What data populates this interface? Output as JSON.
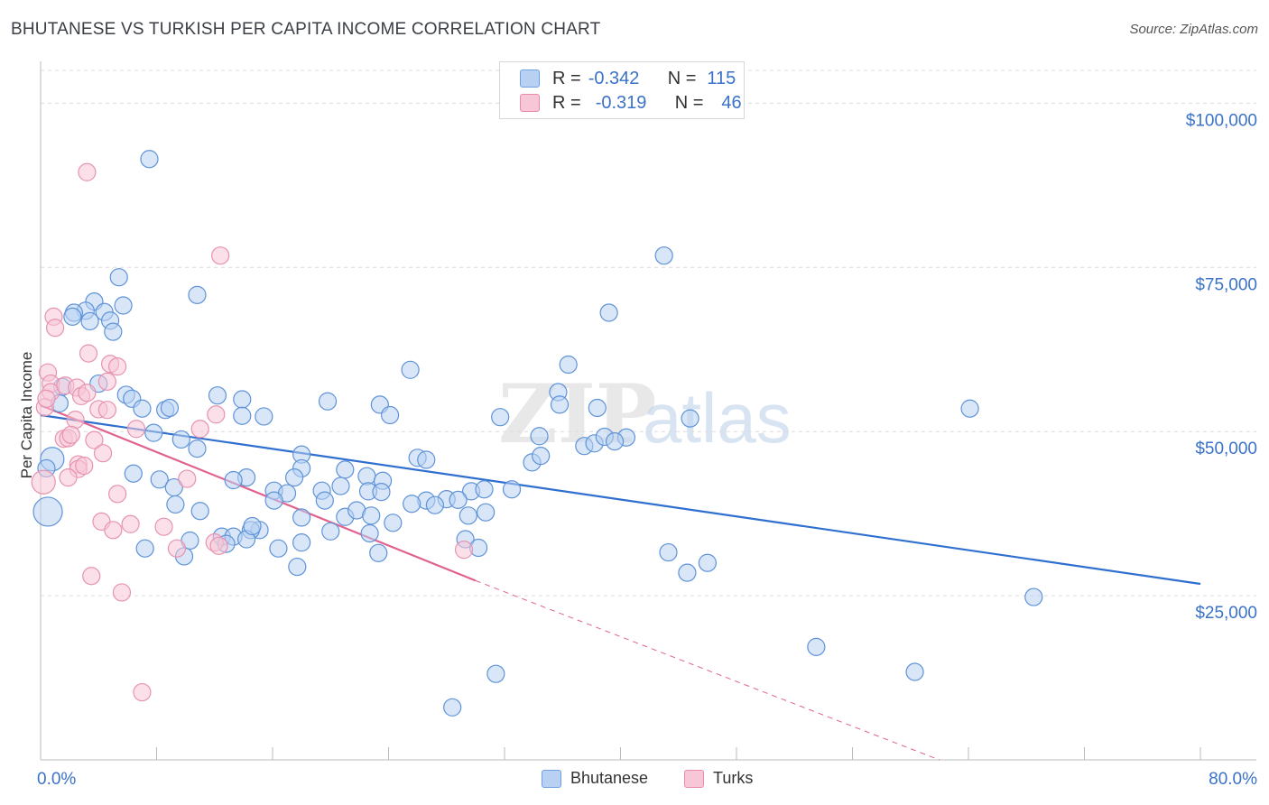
{
  "title": "BHUTANESE VS TURKISH PER CAPITA INCOME CORRELATION CHART",
  "source": "Source: ZipAtlas.com",
  "watermark": {
    "zip": "ZIP",
    "atlas": "atlas"
  },
  "legend": {
    "rows": [
      {
        "r_label": "R =",
        "r_value": "-0.342",
        "n_label": "N =",
        "n_value": "115",
        "color": "#b8d1f3",
        "stroke": "#6fa0e0"
      },
      {
        "r_label": "R =",
        "r_value": "-0.319",
        "n_label": "N =",
        "n_value": "46",
        "color": "#f7c6d7",
        "stroke": "#e98aab"
      }
    ]
  },
  "chart_data": {
    "type": "scatter",
    "title": "BHUTANESE VS TURKISH PER CAPITA INCOME CORRELATION CHART",
    "xlabel": "",
    "ylabel": "Per Capita Income",
    "xlim": [
      0,
      80
    ],
    "ylim": [
      0,
      105000
    ],
    "x_tick_labels": [
      "0.0%",
      "80.0%"
    ],
    "y_ticks": [
      {
        "value": 25000,
        "label": "$25,000"
      },
      {
        "value": 50000,
        "label": "$50,000"
      },
      {
        "value": 75000,
        "label": "$75,000"
      },
      {
        "value": 100000,
        "label": "$100,000"
      }
    ],
    "grid": "horizontal dashed",
    "series": [
      {
        "name": "Bhutanese",
        "color": "#b8d1f3",
        "stroke": "#5f93d8",
        "line_color": "#2f6fcf",
        "trend": {
          "x": [
            0,
            80
          ],
          "y": [
            52500,
            26800
          ],
          "dashed_from": null
        },
        "points": [
          [
            7.5,
            91.5
          ],
          [
            43,
            76.8
          ],
          [
            5.4,
            73.5
          ],
          [
            10.8,
            70.8
          ],
          [
            3.7,
            69.8
          ],
          [
            5.7,
            69.2
          ],
          [
            3.1,
            68.4
          ],
          [
            2.3,
            68.1
          ],
          [
            4.4,
            68.2
          ],
          [
            2.2,
            67.5
          ],
          [
            3.4,
            66.8
          ],
          [
            4.8,
            66.9
          ],
          [
            5.0,
            65.2
          ],
          [
            39.2,
            68.1
          ],
          [
            36.4,
            60.2
          ],
          [
            25.5,
            59.4
          ],
          [
            1.5,
            56.8
          ],
          [
            4.0,
            57.3
          ],
          [
            5.9,
            55.6
          ],
          [
            6.3,
            55.0
          ],
          [
            12.2,
            55.5
          ],
          [
            13.9,
            54.9
          ],
          [
            19.8,
            54.6
          ],
          [
            35.7,
            56.0
          ],
          [
            35.8,
            54.1
          ],
          [
            23.4,
            54.1
          ],
          [
            7.0,
            53.5
          ],
          [
            8.6,
            53.3
          ],
          [
            1.3,
            54.3
          ],
          [
            13.9,
            52.4
          ],
          [
            15.4,
            52.3
          ],
          [
            24.1,
            52.5
          ],
          [
            31.7,
            52.2
          ],
          [
            44.8,
            52.0
          ],
          [
            64.1,
            53.5
          ],
          [
            7.8,
            49.8
          ],
          [
            9.7,
            48.8
          ],
          [
            10.8,
            47.4
          ],
          [
            18.0,
            46.5
          ],
          [
            26.0,
            46.0
          ],
          [
            34.4,
            49.3
          ],
          [
            37.5,
            47.8
          ],
          [
            38.2,
            48.2
          ],
          [
            38.9,
            49.2
          ],
          [
            40.4,
            49.1
          ],
          [
            39.6,
            48.5
          ],
          [
            38.4,
            53.6
          ],
          [
            26.6,
            45.7
          ],
          [
            21.0,
            44.2
          ],
          [
            22.5,
            43.2
          ],
          [
            14.2,
            43.0
          ],
          [
            18.0,
            44.4
          ],
          [
            33.9,
            45.3
          ],
          [
            34.5,
            46.3
          ],
          [
            0.8,
            45.8
          ],
          [
            0.4,
            44.4
          ],
          [
            6.4,
            43.6
          ],
          [
            8.2,
            42.7
          ],
          [
            13.3,
            42.6
          ],
          [
            17.5,
            43.0
          ],
          [
            23.6,
            42.5
          ],
          [
            16.1,
            41.0
          ],
          [
            20.7,
            41.7
          ],
          [
            19.4,
            41.0
          ],
          [
            17.0,
            40.6
          ],
          [
            22.6,
            40.9
          ],
          [
            23.5,
            40.8
          ],
          [
            29.7,
            40.9
          ],
          [
            32.5,
            41.2
          ],
          [
            30.6,
            41.2
          ],
          [
            9.2,
            41.5
          ],
          [
            9.3,
            38.9
          ],
          [
            11.0,
            37.9
          ],
          [
            16.1,
            39.5
          ],
          [
            19.6,
            39.5
          ],
          [
            26.6,
            39.5
          ],
          [
            28.0,
            39.7
          ],
          [
            28.8,
            39.6
          ],
          [
            27.2,
            38.8
          ],
          [
            29.5,
            37.2
          ],
          [
            30.7,
            37.7
          ],
          [
            21.0,
            37.0
          ],
          [
            21.8,
            38.0
          ],
          [
            22.7,
            34.5
          ],
          [
            24.3,
            36.1
          ],
          [
            20.0,
            34.8
          ],
          [
            15.1,
            35.0
          ],
          [
            14.5,
            35.0
          ],
          [
            12.5,
            34.0
          ],
          [
            13.3,
            34.0
          ],
          [
            0.5,
            37.8
          ],
          [
            7.2,
            32.2
          ],
          [
            10.3,
            33.4
          ],
          [
            12.8,
            32.9
          ],
          [
            14.2,
            33.6
          ],
          [
            16.4,
            32.2
          ],
          [
            18.0,
            33.1
          ],
          [
            29.3,
            33.6
          ],
          [
            30.2,
            32.3
          ],
          [
            23.3,
            31.5
          ],
          [
            9.9,
            31.0
          ],
          [
            17.7,
            29.4
          ],
          [
            43.3,
            31.6
          ],
          [
            46.0,
            30.0
          ],
          [
            44.6,
            28.5
          ],
          [
            68.5,
            24.8
          ],
          [
            53.5,
            17.2
          ],
          [
            60.3,
            13.4
          ],
          [
            31.4,
            13.1
          ],
          [
            28.4,
            8.0
          ],
          [
            18.0,
            36.9
          ],
          [
            25.6,
            39.0
          ],
          [
            8.9,
            53.6
          ],
          [
            14.6,
            35.6
          ],
          [
            22.8,
            37.2
          ]
        ]
      },
      {
        "name": "Turks",
        "color": "#f7c6d7",
        "stroke": "#e793b0",
        "line_color": "#e2628f",
        "trend": {
          "x": [
            0,
            30
          ],
          "y": [
            54000,
            27300
          ],
          "dashed_to": [
            62,
            0
          ]
        },
        "points": [
          [
            3.2,
            89.5
          ],
          [
            12.4,
            76.8
          ],
          [
            0.9,
            67.5
          ],
          [
            1.0,
            65.8
          ],
          [
            3.3,
            61.9
          ],
          [
            0.5,
            59.0
          ],
          [
            4.8,
            60.3
          ],
          [
            5.3,
            59.9
          ],
          [
            0.7,
            57.3
          ],
          [
            0.7,
            56.0
          ],
          [
            1.7,
            57.0
          ],
          [
            2.5,
            56.7
          ],
          [
            2.8,
            55.4
          ],
          [
            4.6,
            57.6
          ],
          [
            3.2,
            55.9
          ],
          [
            4.0,
            53.4
          ],
          [
            4.6,
            53.3
          ],
          [
            0.3,
            53.7
          ],
          [
            2.4,
            51.8
          ],
          [
            12.1,
            52.6
          ],
          [
            6.6,
            50.4
          ],
          [
            11.0,
            50.4
          ],
          [
            1.6,
            48.9
          ],
          [
            1.9,
            49.0
          ],
          [
            3.7,
            48.7
          ],
          [
            4.3,
            46.7
          ],
          [
            2.6,
            45.0
          ],
          [
            2.6,
            44.3
          ],
          [
            1.9,
            43.0
          ],
          [
            10.1,
            42.8
          ],
          [
            0.2,
            42.3
          ],
          [
            5.3,
            40.5
          ],
          [
            4.2,
            36.3
          ],
          [
            5.0,
            35.0
          ],
          [
            6.2,
            35.9
          ],
          [
            8.5,
            35.5
          ],
          [
            12.0,
            33.1
          ],
          [
            12.3,
            32.6
          ],
          [
            9.4,
            32.2
          ],
          [
            29.2,
            32.0
          ],
          [
            3.5,
            28.0
          ],
          [
            5.6,
            25.5
          ],
          [
            7.0,
            10.3
          ],
          [
            0.4,
            55.0
          ],
          [
            2.1,
            49.5
          ],
          [
            3.0,
            44.8
          ]
        ]
      }
    ]
  },
  "bottom_legend": [
    {
      "label": "Bhutanese",
      "color": "#b8d1f3",
      "stroke": "#6fa0e0"
    },
    {
      "label": "Turks",
      "color": "#f7c6d7",
      "stroke": "#e98aab"
    }
  ]
}
